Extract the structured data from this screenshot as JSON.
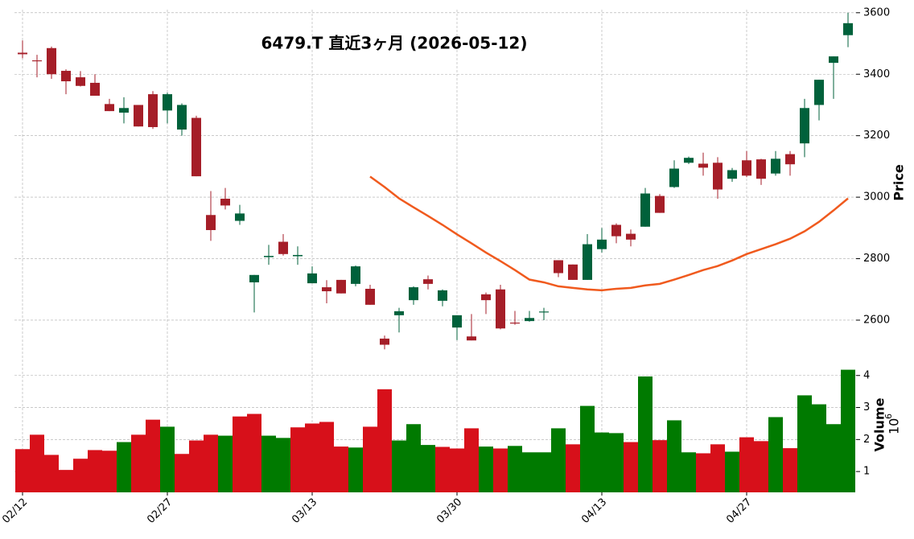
{
  "chart_data": [
    {
      "type": "candlestick",
      "title": "6479.T  直近3ヶ月  (2026-05-12)",
      "ylabel": "Price",
      "open": [
        3470,
        3445,
        3485,
        3411,
        3390,
        3372,
        3303,
        3275,
        3300,
        3335,
        3282,
        3220,
        3258,
        2942,
        2995,
        2923,
        2723,
        2805,
        2855,
        2808,
        2720,
        2707,
        2731,
        2718,
        2702,
        2540,
        2616,
        2665,
        2733,
        2663,
        2576,
        2547,
        2684,
        2700,
        2592,
        2597,
        2625,
        2795,
        2781,
        2731,
        2831,
        2910,
        2881,
        2904,
        3004,
        3033,
        3112,
        3109,
        3112,
        3060,
        3120,
        3123,
        3077,
        3140,
        3175,
        3300,
        3437,
        3527
      ],
      "high": [
        3510,
        3463,
        3490,
        3416,
        3410,
        3400,
        3320,
        3325,
        3300,
        3345,
        3340,
        3305,
        3265,
        3020,
        3030,
        2975,
        2747,
        2845,
        2880,
        2840,
        2775,
        2730,
        2731,
        2778,
        2715,
        2550,
        2640,
        2710,
        2745,
        2700,
        2616,
        2620,
        2690,
        2715,
        2630,
        2630,
        2640,
        2795,
        2781,
        2880,
        2900,
        2915,
        2895,
        3030,
        3010,
        3120,
        3132,
        3145,
        3130,
        3095,
        3150,
        3125,
        3150,
        3150,
        3320,
        3382,
        3458,
        3600
      ],
      "low": [
        3452,
        3390,
        3385,
        3335,
        3360,
        3330,
        3280,
        3240,
        3230,
        3222,
        3240,
        3200,
        3068,
        2858,
        2960,
        2910,
        2625,
        2780,
        2810,
        2780,
        2720,
        2655,
        2687,
        2710,
        2650,
        2505,
        2560,
        2650,
        2700,
        2645,
        2535,
        2534,
        2620,
        2570,
        2585,
        2595,
        2600,
        2740,
        2731,
        2731,
        2820,
        2850,
        2840,
        2904,
        2949,
        3030,
        3108,
        3070,
        2995,
        3050,
        3065,
        3040,
        3070,
        3070,
        3130,
        3250,
        3320,
        3488
      ],
      "close": [
        3465,
        3442,
        3400,
        3377,
        3362,
        3330,
        3280,
        3290,
        3230,
        3228,
        3335,
        3300,
        3068,
        2893,
        2973,
        2947,
        2747,
        2809,
        2815,
        2812,
        2752,
        2694,
        2687,
        2775,
        2650,
        2520,
        2629,
        2707,
        2718,
        2697,
        2616,
        2534,
        2665,
        2573,
        2589,
        2607,
        2628,
        2753,
        2731,
        2847,
        2862,
        2873,
        2862,
        3012,
        2949,
        3093,
        3128,
        3096,
        3025,
        3088,
        3070,
        3060,
        3125,
        3107,
        3290,
        3382,
        3458,
        3566
      ],
      "up_color": "#00613b",
      "down_color": "#a51e28",
      "ma": {
        "color": "#f05a1e",
        "values": [
          null,
          null,
          null,
          null,
          null,
          null,
          null,
          null,
          null,
          null,
          null,
          null,
          null,
          null,
          null,
          null,
          null,
          null,
          null,
          null,
          null,
          null,
          null,
          null,
          3067,
          3033,
          2996,
          2967,
          2939,
          2910,
          2879,
          2850,
          2820,
          2792,
          2763,
          2732,
          2723,
          2710,
          2705,
          2700,
          2697,
          2702,
          2705,
          2713,
          2718,
          2732,
          2747,
          2763,
          2776,
          2794,
          2815,
          2831,
          2847,
          2865,
          2889,
          2920,
          2957,
          2996
        ]
      },
      "ylim": [
        2490,
        3610
      ],
      "yticks": [
        2600,
        2800,
        3000,
        3200,
        3400,
        3600
      ],
      "grid": true
    },
    {
      "type": "bar",
      "ylabel": "Volume",
      "offset_base": "10",
      "offset_exponent": "6",
      "categories": [
        "02/12",
        null,
        null,
        null,
        null,
        null,
        null,
        null,
        null,
        null,
        "02/27",
        null,
        null,
        null,
        null,
        null,
        null,
        null,
        null,
        null,
        "03/13",
        null,
        null,
        null,
        null,
        null,
        null,
        null,
        null,
        null,
        "03/30",
        null,
        null,
        null,
        null,
        null,
        null,
        null,
        null,
        null,
        "04/13",
        null,
        null,
        null,
        null,
        null,
        null,
        null,
        null,
        null,
        "04/27",
        null,
        null,
        null,
        null,
        null,
        null,
        null
      ],
      "values": [
        1.7,
        2.15,
        1.52,
        1.05,
        1.4,
        1.67,
        1.65,
        1.92,
        2.15,
        2.62,
        2.4,
        1.55,
        1.97,
        2.15,
        2.12,
        2.72,
        2.8,
        2.12,
        2.05,
        2.38,
        2.5,
        2.55,
        1.78,
        1.75,
        2.4,
        3.57,
        1.97,
        2.48,
        1.83,
        1.77,
        1.72,
        2.35,
        1.78,
        1.72,
        1.8,
        1.6,
        1.6,
        2.35,
        1.85,
        3.05,
        2.22,
        2.2,
        1.92,
        3.97,
        1.98,
        2.6,
        1.6,
        1.57,
        1.85,
        1.62,
        2.07,
        1.95,
        2.7,
        1.73,
        3.38,
        3.1,
        2.48,
        4.18
      ],
      "up_color": "#007a00",
      "down_color": "#d7101a",
      "ylim": [
        0.35,
        4.22
      ],
      "yticks": [
        1,
        2,
        3,
        4
      ],
      "grid": true
    }
  ]
}
